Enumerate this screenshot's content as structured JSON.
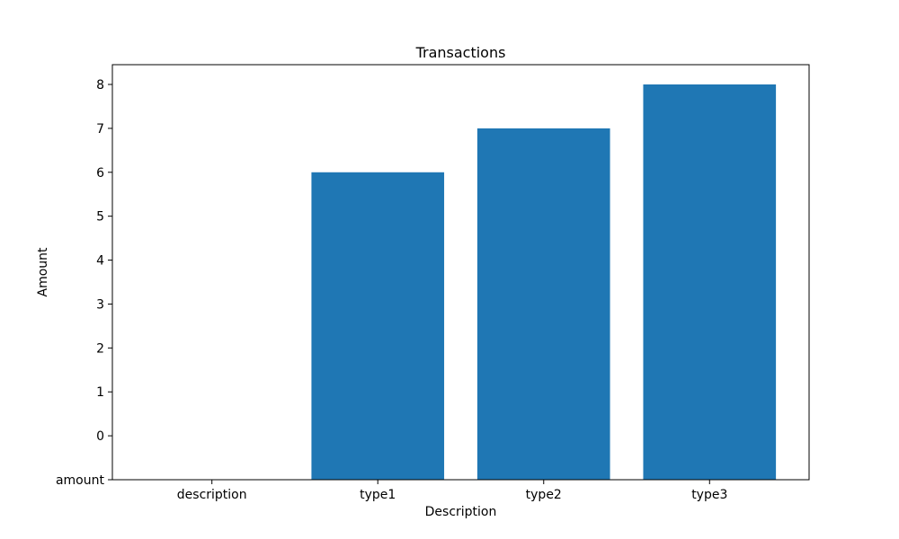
{
  "chart_data": {
    "type": "bar",
    "title": "Transactions",
    "xlabel": "Description",
    "ylabel": "Amount",
    "categories": [
      "description",
      "type1",
      "type2",
      "type3"
    ],
    "values": [
      null,
      6,
      7,
      8
    ],
    "y_tick_labels": [
      "amount",
      "0",
      "1",
      "2",
      "3",
      "4",
      "5",
      "6",
      "7",
      "8"
    ],
    "ylim": [
      -1,
      8
    ],
    "grid": false,
    "bar_color": "#1f77b4"
  }
}
